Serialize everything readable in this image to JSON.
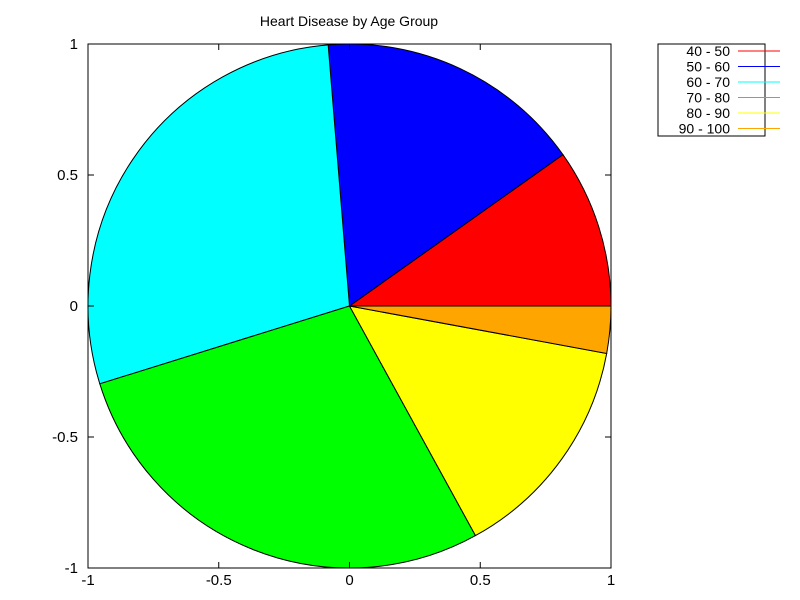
{
  "chart_data": {
    "type": "pie",
    "title": "Heart Disease by Age Group",
    "xlabel": "",
    "ylabel": "",
    "xlim": [
      -1,
      1
    ],
    "ylim": [
      -1,
      1
    ],
    "xticks": [
      "-1",
      "-0.5",
      "0",
      "0.5",
      "1"
    ],
    "yticks": [
      "1",
      "0.5",
      "0",
      "-0.5",
      "-1"
    ],
    "legend_position": "top-right outside",
    "grid": false,
    "slices": [
      {
        "label": "40 - 50",
        "value": 0.098,
        "color": "#ff0000"
      },
      {
        "label": "50 - 60",
        "value": 0.165,
        "color": "#0000ff"
      },
      {
        "label": "60 - 70",
        "value": 0.285,
        "color": "#00ffff"
      },
      {
        "label": "70 - 80",
        "value": 0.282,
        "color": "#00ff00"
      },
      {
        "label": "80 - 90",
        "value": 0.141,
        "color": "#ffff00"
      },
      {
        "label": "90 - 100",
        "value": 0.029,
        "color": "#ffa500"
      }
    ]
  }
}
